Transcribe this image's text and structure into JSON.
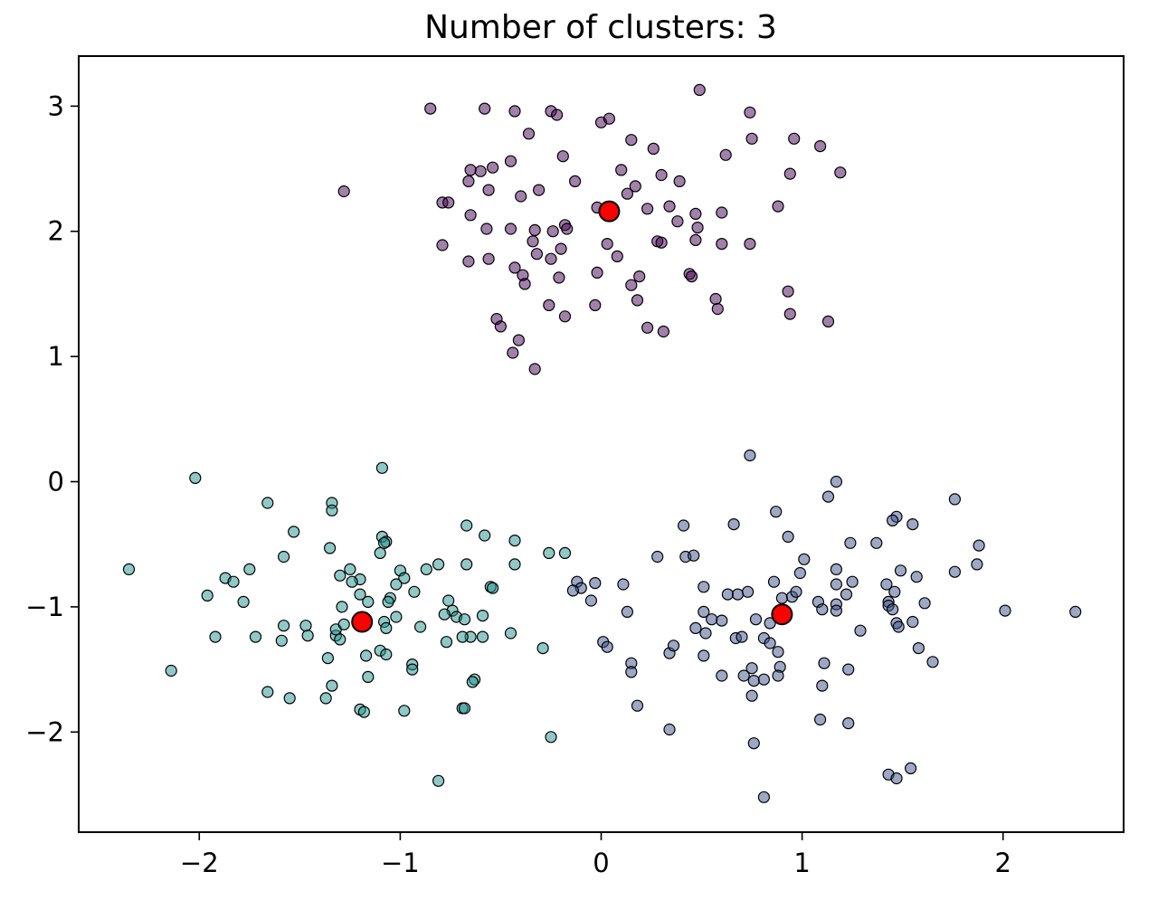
{
  "chart_data": {
    "type": "scatter",
    "title": "Number of clusters: 3",
    "xlabel": "",
    "ylabel": "",
    "xlim": [
      -2.6,
      2.6
    ],
    "ylim": [
      -2.8,
      3.4
    ],
    "xticks": [
      -2,
      -1,
      0,
      1,
      2
    ],
    "xtick_labels": [
      "−2",
      "−1",
      "0",
      "1",
      "2"
    ],
    "yticks": [
      -2,
      -1,
      0,
      1,
      2,
      3
    ],
    "ytick_labels": [
      "−2",
      "−1",
      "0",
      "1",
      "2",
      "3"
    ],
    "grid": false,
    "legend": "none",
    "series": [
      {
        "color": "#44015480",
        "points": [
          [
            -0.85,
            2.98
          ],
          [
            -0.58,
            2.98
          ],
          [
            -0.43,
            2.96
          ],
          [
            -0.25,
            2.96
          ],
          [
            -0.22,
            2.93
          ],
          [
            0.0,
            2.87
          ],
          [
            0.04,
            2.9
          ],
          [
            0.49,
            3.13
          ],
          [
            0.74,
            2.95
          ],
          [
            0.75,
            2.74
          ],
          [
            0.96,
            2.74
          ],
          [
            1.09,
            2.68
          ],
          [
            1.19,
            2.47
          ],
          [
            0.94,
            2.46
          ],
          [
            0.88,
            2.2
          ],
          [
            0.62,
            2.61
          ],
          [
            0.15,
            2.73
          ],
          [
            0.26,
            2.66
          ],
          [
            0.1,
            2.49
          ],
          [
            0.3,
            2.45
          ],
          [
            0.39,
            2.4
          ],
          [
            0.17,
            2.36
          ],
          [
            -0.19,
            2.6
          ],
          [
            -0.36,
            2.78
          ],
          [
            -0.45,
            2.56
          ],
          [
            -0.54,
            2.51
          ],
          [
            -0.6,
            2.48
          ],
          [
            -0.65,
            2.49
          ],
          [
            -0.66,
            2.4
          ],
          [
            -0.56,
            2.33
          ],
          [
            -0.31,
            2.33
          ],
          [
            -0.4,
            2.28
          ],
          [
            -0.13,
            2.4
          ],
          [
            -0.79,
            2.23
          ],
          [
            -0.76,
            2.23
          ],
          [
            -1.28,
            2.32
          ],
          [
            -0.65,
            2.13
          ],
          [
            -0.57,
            2.02
          ],
          [
            -0.45,
            2.02
          ],
          [
            -0.33,
            2.01
          ],
          [
            -0.24,
            2.0
          ],
          [
            -0.18,
            2.05
          ],
          [
            -0.17,
            2.02
          ],
          [
            -0.02,
            2.19
          ],
          [
            0.13,
            2.3
          ],
          [
            0.23,
            2.18
          ],
          [
            0.34,
            2.2
          ],
          [
            0.38,
            2.08
          ],
          [
            0.47,
            2.14
          ],
          [
            0.6,
            2.15
          ],
          [
            -0.79,
            1.89
          ],
          [
            -0.66,
            1.76
          ],
          [
            -0.56,
            1.78
          ],
          [
            -0.34,
            1.92
          ],
          [
            -0.32,
            1.82
          ],
          [
            -0.2,
            1.86
          ],
          [
            -0.25,
            1.78
          ],
          [
            -0.43,
            1.71
          ],
          [
            -0.39,
            1.65
          ],
          [
            -0.38,
            1.58
          ],
          [
            -0.21,
            1.63
          ],
          [
            -0.02,
            1.67
          ],
          [
            0.03,
            1.9
          ],
          [
            0.08,
            1.8
          ],
          [
            0.15,
            1.57
          ],
          [
            0.19,
            1.64
          ],
          [
            0.28,
            1.92
          ],
          [
            0.3,
            1.91
          ],
          [
            0.48,
            2.03
          ],
          [
            0.47,
            1.93
          ],
          [
            0.44,
            1.66
          ],
          [
            0.45,
            1.64
          ],
          [
            0.57,
            1.46
          ],
          [
            0.58,
            1.38
          ],
          [
            0.6,
            1.9
          ],
          [
            0.74,
            1.9
          ],
          [
            0.93,
            1.52
          ],
          [
            0.94,
            1.34
          ],
          [
            1.13,
            1.28
          ],
          [
            -0.26,
            1.41
          ],
          [
            -0.18,
            1.32
          ],
          [
            -0.03,
            1.41
          ],
          [
            0.18,
            1.45
          ],
          [
            0.23,
            1.23
          ],
          [
            0.31,
            1.2
          ],
          [
            -0.52,
            1.3
          ],
          [
            -0.5,
            1.24
          ],
          [
            -0.41,
            1.13
          ],
          [
            -0.44,
            1.03
          ],
          [
            -0.33,
            0.9
          ]
        ]
      },
      {
        "color": "#3b528b80",
        "points": [
          [
            0.74,
            0.21
          ],
          [
            1.17,
            0.0
          ],
          [
            1.13,
            -0.12
          ],
          [
            1.76,
            -0.14
          ],
          [
            0.87,
            -0.24
          ],
          [
            0.41,
            -0.35
          ],
          [
            0.66,
            -0.34
          ],
          [
            1.47,
            -0.28
          ],
          [
            1.45,
            -0.31
          ],
          [
            1.55,
            -0.34
          ],
          [
            0.93,
            -0.44
          ],
          [
            1.24,
            -0.49
          ],
          [
            1.37,
            -0.49
          ],
          [
            1.88,
            -0.51
          ],
          [
            0.28,
            -0.6
          ],
          [
            0.42,
            -0.6
          ],
          [
            0.46,
            -0.59
          ],
          [
            1.01,
            -0.62
          ],
          [
            1.17,
            -0.7
          ],
          [
            1.49,
            -0.71
          ],
          [
            1.57,
            -0.76
          ],
          [
            1.76,
            -0.72
          ],
          [
            1.87,
            -0.66
          ],
          [
            0.99,
            -0.73
          ],
          [
            -0.12,
            -0.8
          ],
          [
            -0.03,
            -0.81
          ],
          [
            -0.1,
            -0.85
          ],
          [
            -0.14,
            -0.87
          ],
          [
            0.11,
            -0.82
          ],
          [
            0.51,
            -0.84
          ],
          [
            0.86,
            -0.8
          ],
          [
            1.17,
            -0.82
          ],
          [
            1.25,
            -0.8
          ],
          [
            1.42,
            -0.82
          ],
          [
            1.46,
            -0.88
          ],
          [
            -0.05,
            -0.95
          ],
          [
            0.63,
            -0.9
          ],
          [
            0.68,
            -0.9
          ],
          [
            0.73,
            -0.88
          ],
          [
            0.9,
            -0.93
          ],
          [
            0.95,
            -0.92
          ],
          [
            0.97,
            -0.88
          ],
          [
            1.08,
            -0.96
          ],
          [
            1.1,
            -1.02
          ],
          [
            1.17,
            -0.98
          ],
          [
            1.22,
            -0.9
          ],
          [
            1.43,
            -0.96
          ],
          [
            1.43,
            -0.99
          ],
          [
            1.45,
            -1.02
          ],
          [
            1.61,
            -0.97
          ],
          [
            0.13,
            -1.04
          ],
          [
            0.51,
            -1.04
          ],
          [
            0.55,
            -1.1
          ],
          [
            0.47,
            -1.17
          ],
          [
            0.52,
            -1.21
          ],
          [
            0.6,
            -1.11
          ],
          [
            0.77,
            -1.1
          ],
          [
            0.84,
            -1.13
          ],
          [
            1.17,
            -1.03
          ],
          [
            1.29,
            -1.19
          ],
          [
            1.47,
            -1.13
          ],
          [
            1.48,
            -1.16
          ],
          [
            1.55,
            -1.12
          ],
          [
            2.01,
            -1.03
          ],
          [
            2.36,
            -1.04
          ],
          [
            0.01,
            -1.28
          ],
          [
            0.03,
            -1.32
          ],
          [
            0.15,
            -1.45
          ],
          [
            0.15,
            -1.52
          ],
          [
            0.34,
            -1.37
          ],
          [
            0.36,
            -1.31
          ],
          [
            0.51,
            -1.39
          ],
          [
            0.6,
            -1.55
          ],
          [
            0.67,
            -1.25
          ],
          [
            0.7,
            -1.24
          ],
          [
            0.71,
            -1.55
          ],
          [
            0.75,
            -1.49
          ],
          [
            0.76,
            -1.59
          ],
          [
            0.81,
            -1.25
          ],
          [
            0.84,
            -1.29
          ],
          [
            0.88,
            -1.36
          ],
          [
            0.89,
            -1.48
          ],
          [
            0.88,
            -1.55
          ],
          [
            0.81,
            -1.58
          ],
          [
            0.75,
            -1.71
          ],
          [
            1.11,
            -1.45
          ],
          [
            1.1,
            -1.63
          ],
          [
            1.23,
            -1.5
          ],
          [
            1.58,
            -1.33
          ],
          [
            1.65,
            -1.44
          ],
          [
            0.18,
            -1.79
          ],
          [
            0.34,
            -1.98
          ],
          [
            0.76,
            -2.09
          ],
          [
            1.09,
            -1.9
          ],
          [
            1.23,
            -1.93
          ],
          [
            0.81,
            -2.52
          ],
          [
            1.43,
            -2.34
          ],
          [
            1.47,
            -2.37
          ],
          [
            1.54,
            -2.29
          ]
        ]
      },
      {
        "color": "#21918c80",
        "points": [
          [
            -2.02,
            0.03
          ],
          [
            -1.09,
            0.11
          ],
          [
            -1.66,
            -0.17
          ],
          [
            -1.34,
            -0.17
          ],
          [
            -1.34,
            -0.23
          ],
          [
            -1.53,
            -0.4
          ],
          [
            -1.09,
            -0.44
          ],
          [
            -1.07,
            -0.48
          ],
          [
            -1.08,
            -0.49
          ],
          [
            -1.1,
            -0.57
          ],
          [
            -1.35,
            -0.53
          ],
          [
            -1.58,
            -0.6
          ],
          [
            -0.67,
            -0.35
          ],
          [
            -0.58,
            -0.43
          ],
          [
            -0.43,
            -0.47
          ],
          [
            -0.26,
            -0.57
          ],
          [
            -0.18,
            -0.57
          ],
          [
            -2.35,
            -0.7
          ],
          [
            -1.87,
            -0.77
          ],
          [
            -1.83,
            -0.8
          ],
          [
            -1.75,
            -0.7
          ],
          [
            -1.3,
            -0.75
          ],
          [
            -1.25,
            -0.7
          ],
          [
            -1.2,
            -0.78
          ],
          [
            -1.24,
            -0.8
          ],
          [
            -1.2,
            -0.9
          ],
          [
            -1.16,
            -0.96
          ],
          [
            -1.0,
            -0.71
          ],
          [
            -0.98,
            -0.77
          ],
          [
            -1.02,
            -0.82
          ],
          [
            -0.93,
            -0.88
          ],
          [
            -0.87,
            -0.7
          ],
          [
            -0.81,
            -0.66
          ],
          [
            -0.67,
            -0.66
          ],
          [
            -0.55,
            -0.84
          ],
          [
            -0.43,
            -0.66
          ],
          [
            -0.54,
            -0.85
          ],
          [
            -1.96,
            -0.91
          ],
          [
            -1.78,
            -0.96
          ],
          [
            -1.29,
            -1.0
          ],
          [
            -1.05,
            -0.93
          ],
          [
            -1.06,
            -0.96
          ],
          [
            -0.76,
            -0.95
          ],
          [
            -0.74,
            -1.03
          ],
          [
            -0.59,
            -1.07
          ],
          [
            -1.92,
            -1.24
          ],
          [
            -1.72,
            -1.24
          ],
          [
            -1.58,
            -1.15
          ],
          [
            -1.59,
            -1.27
          ],
          [
            -1.47,
            -1.15
          ],
          [
            -1.46,
            -1.23
          ],
          [
            -1.32,
            -1.23
          ],
          [
            -1.3,
            -1.26
          ],
          [
            -1.32,
            -1.18
          ],
          [
            -1.28,
            -1.14
          ],
          [
            -1.08,
            -1.12
          ],
          [
            -1.07,
            -1.17
          ],
          [
            -1.02,
            -1.08
          ],
          [
            -0.9,
            -1.16
          ],
          [
            -0.78,
            -1.06
          ],
          [
            -0.72,
            -1.08
          ],
          [
            -0.68,
            -1.1
          ],
          [
            -0.65,
            -1.24
          ],
          [
            -0.59,
            -1.24
          ],
          [
            -0.45,
            -1.21
          ],
          [
            -2.14,
            -1.51
          ],
          [
            -1.66,
            -1.68
          ],
          [
            -1.55,
            -1.73
          ],
          [
            -1.37,
            -1.73
          ],
          [
            -1.34,
            -1.63
          ],
          [
            -1.36,
            -1.41
          ],
          [
            -1.17,
            -1.39
          ],
          [
            -1.1,
            -1.35
          ],
          [
            -1.07,
            -1.38
          ],
          [
            -0.94,
            -1.46
          ],
          [
            -0.94,
            -1.5
          ],
          [
            -0.77,
            -1.28
          ],
          [
            -0.69,
            -1.24
          ],
          [
            -0.63,
            -1.58
          ],
          [
            -0.64,
            -1.6
          ],
          [
            -0.29,
            -1.33
          ],
          [
            -1.16,
            -1.56
          ],
          [
            -1.2,
            -1.82
          ],
          [
            -1.18,
            -1.84
          ],
          [
            -0.98,
            -1.83
          ],
          [
            -0.69,
            -1.81
          ],
          [
            -0.68,
            -1.81
          ],
          [
            -0.25,
            -2.04
          ],
          [
            -0.81,
            -2.39
          ]
        ]
      }
    ],
    "centers": {
      "color": "#ff0000",
      "points": [
        [
          0.04,
          2.16
        ],
        [
          -1.19,
          -1.12
        ],
        [
          0.9,
          -1.06
        ]
      ]
    }
  }
}
